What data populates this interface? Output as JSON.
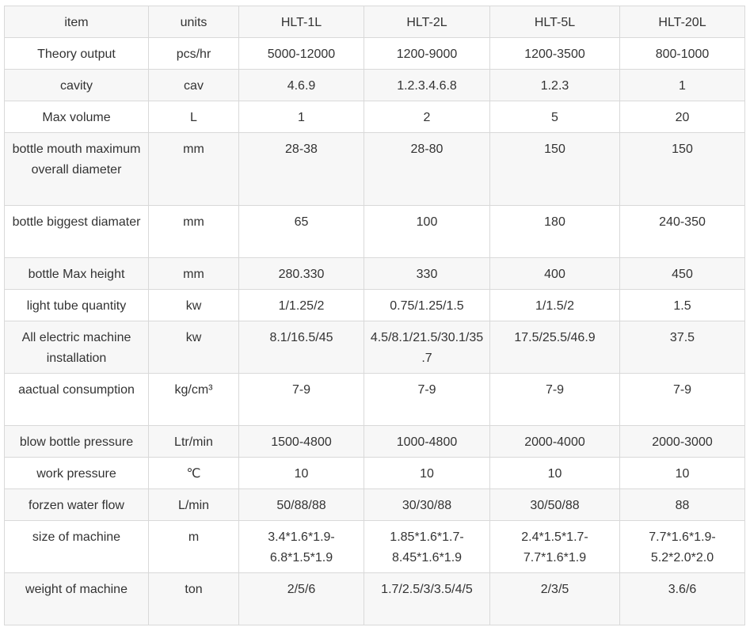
{
  "table": {
    "header": [
      "item",
      "units",
      "HLT-1L",
      "HLT-2L",
      "HLT-5L",
      "HLT-20L"
    ],
    "rows": [
      [
        "Theory output",
        "pcs/hr",
        "5000-12000",
        "1200-9000",
        "1200-3500",
        "800-1000"
      ],
      [
        "cavity",
        "cav",
        "4.6.9",
        "1.2.3.4.6.8",
        "1.2.3",
        "1"
      ],
      [
        "Max volume",
        "L",
        "1",
        "2",
        "5",
        "20"
      ],
      [
        "bottle mouth maximum overall diameter",
        "mm",
        "28-38",
        "28-80",
        "150",
        "150"
      ],
      [
        "bottle biggest diamater",
        "mm",
        "65",
        "100",
        "180",
        "240-350"
      ],
      [
        "bottle Max height",
        "mm",
        "280.330",
        "330",
        "400",
        "450"
      ],
      [
        "light tube quantity",
        "kw",
        "1/1.25/2",
        "0.75/1.25/1.5",
        "1/1.5/2",
        "1.5"
      ],
      [
        "All electric machine installation",
        "kw",
        "8.1/16.5/45",
        "4.5/8.1/21.5/30.1/35.7",
        "17.5/25.5/46.9",
        "37.5"
      ],
      [
        "aactual consumption",
        "kg/cm³",
        "7-9",
        "7-9",
        "7-9",
        "7-9"
      ],
      [
        "blow bottle pressure",
        "Ltr/min",
        "1500-4800",
        "1000-4800",
        "2000-4000",
        "2000-3000"
      ],
      [
        "work pressure",
        "℃",
        "10",
        "10",
        "10",
        "10"
      ],
      [
        "forzen water flow",
        "L/min",
        "50/88/88",
        "30/30/88",
        "30/50/88",
        "88"
      ],
      [
        "size of machine",
        "m",
        "3.4*1.6*1.9-6.8*1.5*1.9",
        "1.85*1.6*1.7-8.45*1.6*1.9",
        "2.4*1.5*1.7-7.7*1.6*1.9",
        "7.7*1.6*1.9-5.2*2.0*2.0"
      ],
      [
        "weight of machine",
        "ton",
        "2/5/6",
        "1.7/2.5/3/3.5/4/5",
        "2/3/5",
        "3.6/6"
      ]
    ]
  }
}
